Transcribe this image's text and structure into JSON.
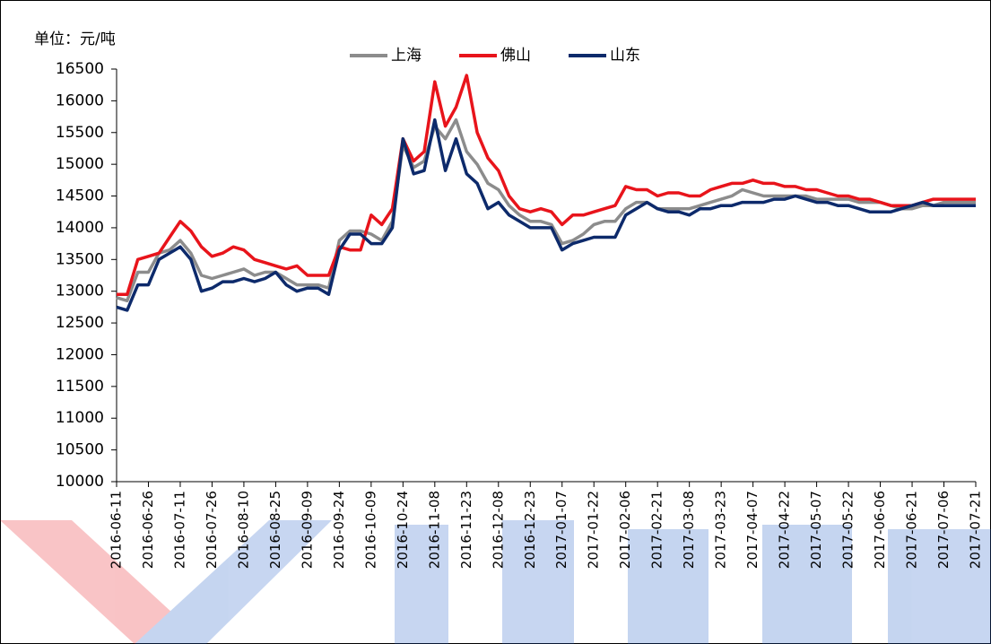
{
  "chart_data": {
    "type": "line",
    "y_label": "单位：元/吨",
    "categories": [
      "2016-06-11",
      null,
      null,
      "2016-06-26",
      null,
      null,
      "2016-07-11",
      null,
      null,
      "2016-07-26",
      null,
      null,
      "2016-08-10",
      null,
      null,
      "2016-08-25",
      null,
      null,
      "2016-09-09",
      null,
      null,
      "2016-09-24",
      null,
      null,
      "2016-10-09",
      null,
      null,
      "2016-10-24",
      null,
      null,
      "2016-11-08",
      null,
      null,
      "2016-11-23",
      null,
      null,
      "2016-12-08",
      null,
      null,
      "2016-12-23",
      null,
      null,
      "2017-01-07",
      null,
      null,
      "2017-01-22",
      null,
      null,
      "2017-02-06",
      null,
      null,
      "2017-02-21",
      null,
      null,
      "2017-03-08",
      null,
      null,
      "2017-03-23",
      null,
      null,
      "2017-04-07",
      null,
      null,
      "2017-04-22",
      null,
      null,
      "2017-05-07",
      null,
      null,
      "2017-05-22",
      null,
      null,
      "2017-06-06",
      null,
      null,
      "2017-06-21",
      null,
      null,
      "2017-07-06",
      null,
      null,
      "2017-07-21"
    ],
    "series": [
      {
        "name": "上海",
        "color": "#8c8c8c",
        "values": [
          12900,
          12850,
          13300,
          13300,
          13600,
          13650,
          13800,
          13600,
          13250,
          13200,
          13250,
          13300,
          13350,
          13250,
          13300,
          13300,
          13200,
          13100,
          13100,
          13100,
          13050,
          13800,
          13950,
          13950,
          13900,
          13800,
          14100,
          15300,
          14950,
          15050,
          15600,
          15400,
          15700,
          15200,
          15000,
          14700,
          14600,
          14350,
          14200,
          14100,
          14100,
          14050,
          13750,
          13800,
          13900,
          14050,
          14100,
          14100,
          14300,
          14400,
          14400,
          14300,
          14300,
          14300,
          14300,
          14350,
          14400,
          14450,
          14500,
          14600,
          14550,
          14500,
          14500,
          14500,
          14500,
          14500,
          14450,
          14450,
          14450,
          14450,
          14400,
          14400,
          14400,
          14350,
          14300,
          14300,
          14350,
          14350,
          14400,
          14400,
          14400,
          14400
        ]
      },
      {
        "name": "佛山",
        "color": "#e8141b",
        "values": [
          12950,
          12950,
          13500,
          13550,
          13600,
          13850,
          14100,
          13950,
          13700,
          13550,
          13600,
          13700,
          13650,
          13500,
          13450,
          13400,
          13350,
          13400,
          13250,
          13250,
          13250,
          13700,
          13650,
          13650,
          14200,
          14050,
          14300,
          15400,
          15050,
          15200,
          16300,
          15600,
          15900,
          16400,
          15500,
          15100,
          14900,
          14500,
          14300,
          14250,
          14300,
          14250,
          14050,
          14200,
          14200,
          14250,
          14300,
          14350,
          14650,
          14600,
          14600,
          14500,
          14550,
          14550,
          14500,
          14500,
          14600,
          14650,
          14700,
          14700,
          14750,
          14700,
          14700,
          14650,
          14650,
          14600,
          14600,
          14550,
          14500,
          14500,
          14450,
          14450,
          14400,
          14350,
          14350,
          14350,
          14400,
          14450,
          14450,
          14450,
          14450,
          14450
        ]
      },
      {
        "name": "山东",
        "color": "#0d2a6b",
        "values": [
          12750,
          12700,
          13100,
          13100,
          13500,
          13600,
          13700,
          13500,
          13000,
          13050,
          13150,
          13150,
          13200,
          13150,
          13200,
          13300,
          13100,
          13000,
          13050,
          13050,
          12950,
          13650,
          13900,
          13900,
          13750,
          13750,
          14000,
          15400,
          14850,
          14900,
          15700,
          14900,
          15400,
          14850,
          14700,
          14300,
          14400,
          14200,
          14100,
          14000,
          14000,
          14000,
          13650,
          13750,
          13800,
          13850,
          13850,
          13850,
          14200,
          14300,
          14400,
          14300,
          14250,
          14250,
          14200,
          14300,
          14300,
          14350,
          14350,
          14400,
          14400,
          14400,
          14450,
          14450,
          14500,
          14450,
          14400,
          14400,
          14350,
          14350,
          14300,
          14250,
          14250,
          14250,
          14300,
          14350,
          14400,
          14350,
          14350,
          14350,
          14350,
          14350
        ]
      }
    ],
    "ylim": [
      10000,
      16500
    ],
    "yticks": [
      10000,
      10500,
      11000,
      11500,
      12000,
      12500,
      13000,
      13500,
      14000,
      14500,
      15000,
      15500,
      16000,
      16500
    ]
  }
}
